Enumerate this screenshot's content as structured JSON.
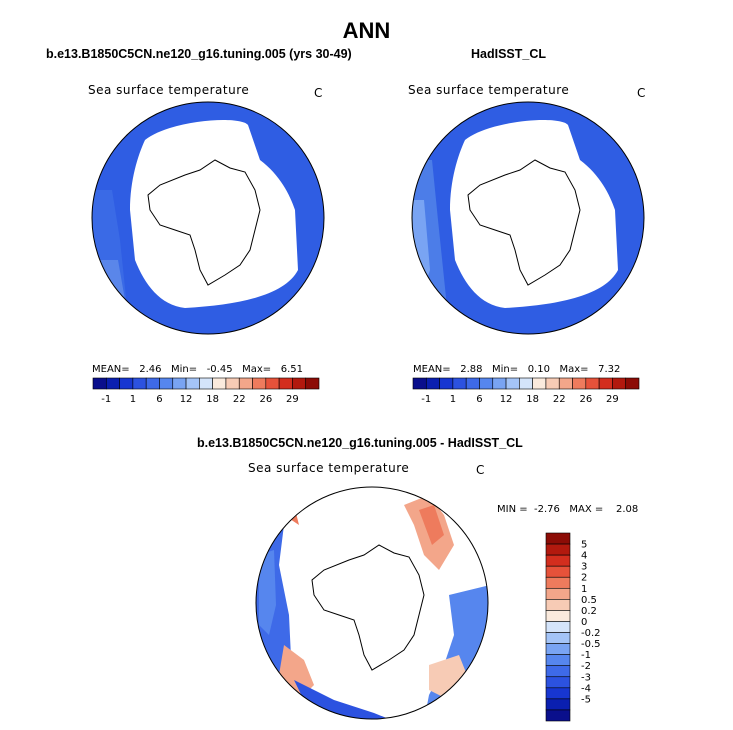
{
  "title": "ANN",
  "panels": [
    {
      "label": "b.e13.B1850C5CN.ne120_g16.tuning.005 (yrs 30-49)",
      "field": "Sea surface temperature",
      "units": "C",
      "mean_label": "MEAN=",
      "mean": "2.46",
      "min_label": "Min=",
      "min": "-0.45",
      "max_label": "Max=",
      "max": "6.51"
    },
    {
      "label": "HadISST_CL",
      "field": "Sea surface temperature",
      "units": "C",
      "mean_label": "MEAN=",
      "mean": "2.88",
      "min_label": "Min=",
      "min": "0.10",
      "max_label": "Max=",
      "max": "7.32"
    }
  ],
  "colorbar_top": {
    "colors": [
      "#0a0f8c",
      "#0a1fb0",
      "#1736d1",
      "#2c52e0",
      "#3e6ae8",
      "#5686ee",
      "#79a4f3",
      "#a4c4f7",
      "#d4e4fa",
      "#faeadd",
      "#f7cbb5",
      "#f3a68a",
      "#ee7b5d",
      "#e6523a",
      "#d32e1e",
      "#b2190e",
      "#8c0c06"
    ],
    "tick_labels": [
      "-1",
      "1",
      "6",
      "12",
      "18",
      "22",
      "26",
      "29"
    ]
  },
  "diff_panel": {
    "label": "b.e13.B1850C5CN.ne120_g16.tuning.005 - HadISST_CL",
    "field": "Sea surface temperature",
    "units": "C",
    "min_label": "MIN =",
    "min": "-2.76",
    "max_label": "MAX =",
    "max": "2.08"
  },
  "colorbar_diff": {
    "colors": [
      "#8c0c06",
      "#b2190e",
      "#d32e1e",
      "#e6523a",
      "#ee7b5d",
      "#f3a68a",
      "#f7cbb5",
      "#faeadd",
      "#d4e4fa",
      "#a4c4f7",
      "#79a4f3",
      "#5686ee",
      "#3e6ae8",
      "#2c52e0",
      "#1736d1",
      "#0a1fb0",
      "#0a0f8c"
    ],
    "tick_labels": [
      "5",
      "4",
      "3",
      "2",
      "1",
      "0.5",
      "0.2",
      "0",
      "-0.2",
      "-0.5",
      "-1",
      "-2",
      "-3",
      "-4",
      "-5"
    ]
  }
}
